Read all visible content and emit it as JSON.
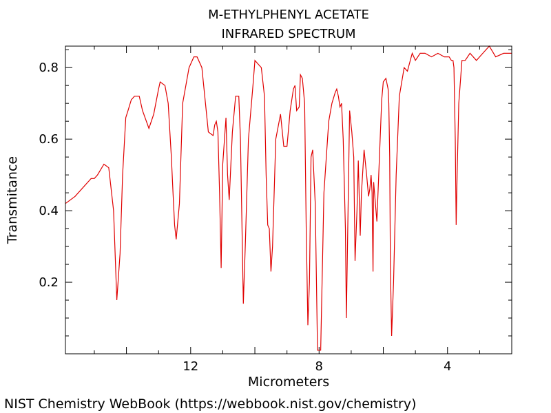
{
  "chart_data": {
    "type": "line",
    "title": "M-ETHYLPHENYL ACETATE",
    "subtitle": "INFRARED SPECTRUM",
    "xlabel": "Micrometers",
    "ylabel": "Transmitance",
    "xlim": [
      15.9,
      2.0
    ],
    "ylim": [
      0.0,
      0.86
    ],
    "x_reversed": true,
    "x_ticks": [
      12,
      8,
      4
    ],
    "y_ticks": [
      0.2,
      0.4,
      0.6,
      0.8
    ],
    "grid": false,
    "legend": "none",
    "line_color": "#e00000",
    "series": [
      {
        "x": [
          15.9,
          15.6,
          15.3,
          15.1,
          15.0,
          14.9,
          14.7,
          14.55,
          14.4,
          14.3,
          14.2,
          14.12,
          14.02,
          13.95,
          13.85,
          13.75,
          13.6,
          13.5,
          13.3,
          13.15,
          13.0,
          12.95,
          12.8,
          12.7,
          12.6,
          12.55,
          12.5,
          12.45,
          12.35,
          12.25,
          12.05,
          11.9,
          11.8,
          11.65,
          11.45,
          11.3,
          11.25,
          11.2,
          11.15,
          11.1,
          11.05,
          11.0,
          10.9,
          10.85,
          10.8,
          10.7,
          10.6,
          10.5,
          10.45,
          10.42,
          10.36,
          10.3,
          10.2,
          10.05,
          10.0,
          9.9,
          9.8,
          9.7,
          9.65,
          9.6,
          9.55,
          9.5,
          9.45,
          9.35,
          9.2,
          9.1,
          9.0,
          8.9,
          8.8,
          8.75,
          8.7,
          8.62,
          8.58,
          8.52,
          8.45,
          8.4,
          8.35,
          8.3,
          8.25,
          8.2,
          8.12,
          8.05,
          7.95,
          7.85,
          7.7,
          7.6,
          7.5,
          7.45,
          7.4,
          7.35,
          7.3,
          7.25,
          7.18,
          7.15,
          7.05,
          6.98,
          6.92,
          6.88,
          6.82,
          6.78,
          6.72,
          6.68,
          6.6,
          6.52,
          6.46,
          6.42,
          6.38,
          6.35,
          6.32,
          6.3,
          6.2,
          6.05,
          6.0,
          5.92,
          5.85,
          5.83,
          5.8,
          5.78,
          5.74,
          5.68,
          5.6,
          5.5,
          5.35,
          5.25,
          5.1,
          5.0,
          4.85,
          4.7,
          4.5,
          4.3,
          4.1,
          3.95,
          3.88,
          3.83,
          3.8,
          3.76,
          3.73,
          3.7,
          3.65,
          3.55,
          3.45,
          3.3,
          3.1,
          2.9,
          2.7,
          2.5,
          2.25,
          2.0
        ],
        "y": [
          0.42,
          0.44,
          0.47,
          0.49,
          0.49,
          0.5,
          0.53,
          0.52,
          0.4,
          0.15,
          0.28,
          0.5,
          0.66,
          0.68,
          0.71,
          0.72,
          0.72,
          0.68,
          0.63,
          0.67,
          0.74,
          0.76,
          0.75,
          0.7,
          0.55,
          0.45,
          0.36,
          0.32,
          0.42,
          0.7,
          0.8,
          0.83,
          0.83,
          0.8,
          0.62,
          0.61,
          0.64,
          0.65,
          0.62,
          0.45,
          0.24,
          0.53,
          0.66,
          0.5,
          0.43,
          0.62,
          0.72,
          0.72,
          0.6,
          0.45,
          0.14,
          0.3,
          0.6,
          0.76,
          0.82,
          0.81,
          0.8,
          0.72,
          0.5,
          0.36,
          0.35,
          0.23,
          0.3,
          0.6,
          0.67,
          0.58,
          0.58,
          0.68,
          0.74,
          0.75,
          0.68,
          0.69,
          0.78,
          0.77,
          0.7,
          0.35,
          0.08,
          0.2,
          0.55,
          0.57,
          0.42,
          0.01,
          0.01,
          0.45,
          0.65,
          0.7,
          0.73,
          0.74,
          0.72,
          0.69,
          0.7,
          0.6,
          0.35,
          0.1,
          0.68,
          0.62,
          0.55,
          0.26,
          0.4,
          0.54,
          0.33,
          0.45,
          0.57,
          0.5,
          0.44,
          0.46,
          0.5,
          0.45,
          0.23,
          0.48,
          0.37,
          0.71,
          0.76,
          0.77,
          0.74,
          0.7,
          0.55,
          0.25,
          0.05,
          0.2,
          0.5,
          0.72,
          0.8,
          0.79,
          0.84,
          0.82,
          0.84,
          0.84,
          0.83,
          0.84,
          0.83,
          0.83,
          0.82,
          0.82,
          0.8,
          0.6,
          0.36,
          0.5,
          0.7,
          0.82,
          0.82,
          0.84,
          0.82,
          0.84,
          0.86,
          0.83,
          0.84,
          0.84
        ]
      }
    ]
  },
  "footer": {
    "credit": "NIST Chemistry WebBook (https://webbook.nist.gov/chemistry)"
  }
}
